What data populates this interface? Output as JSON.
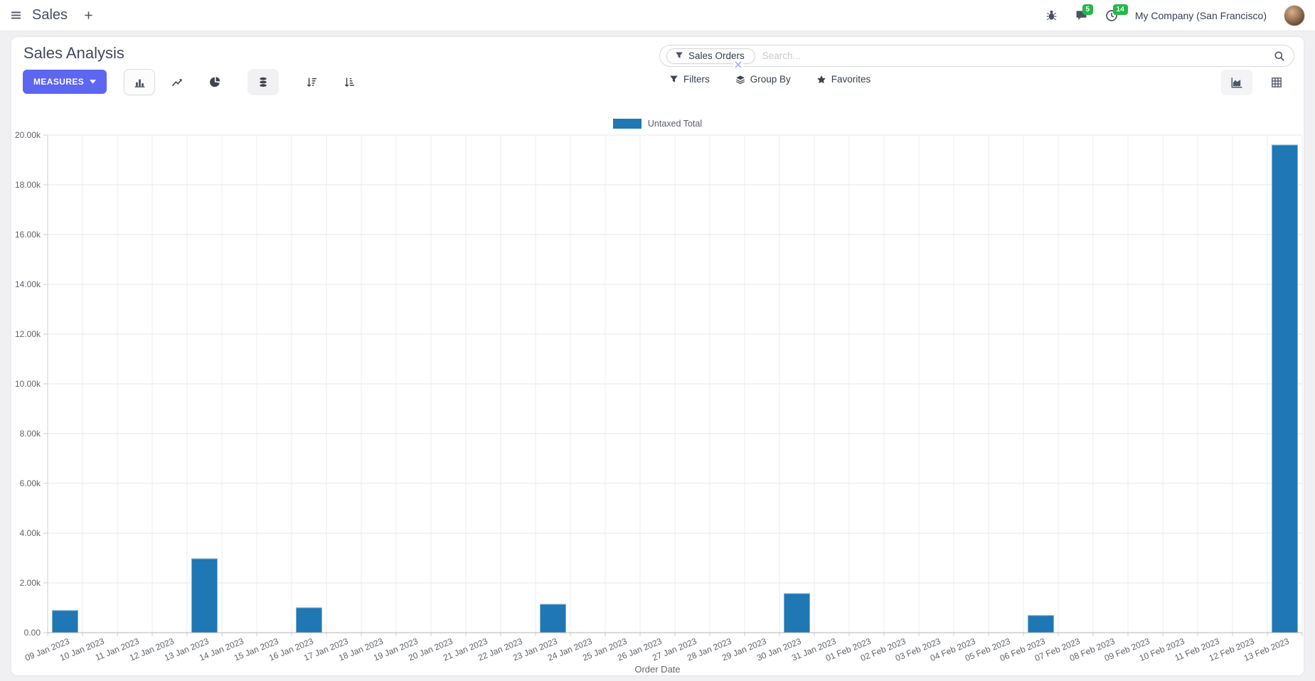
{
  "navbar": {
    "app_name": "Sales",
    "messages_badge": "5",
    "activities_badge": "14",
    "company": "My Company (San Francisco)"
  },
  "control_panel": {
    "title": "Sales Analysis",
    "measures_label": "MEASURES",
    "search": {
      "facet": "Sales Orders",
      "placeholder": "Search..."
    },
    "menus": {
      "filters": "Filters",
      "group_by": "Group By",
      "favorites": "Favorites"
    }
  },
  "colors": {
    "accent": "#5c66f0",
    "bar": "#1f77b4",
    "bar_border": "#7fb2d6",
    "badge_green": "#1eba45"
  },
  "chart_data": {
    "type": "bar",
    "title": "",
    "legend_position": "top",
    "grid": true,
    "xlabel": "Order Date",
    "ylabel": "",
    "ylim": [
      0,
      20000
    ],
    "yticks": {
      "step": 2000,
      "labels": [
        "0.00",
        "2.00k",
        "4.00k",
        "6.00k",
        "8.00k",
        "10.00k",
        "12.00k",
        "14.00k",
        "16.00k",
        "18.00k",
        "20.00k"
      ]
    },
    "categories": [
      "09 Jan 2023",
      "10 Jan 2023",
      "11 Jan 2023",
      "12 Jan 2023",
      "13 Jan 2023",
      "14 Jan 2023",
      "15 Jan 2023",
      "16 Jan 2023",
      "17 Jan 2023",
      "18 Jan 2023",
      "19 Jan 2023",
      "20 Jan 2023",
      "21 Jan 2023",
      "22 Jan 2023",
      "23 Jan 2023",
      "24 Jan 2023",
      "25 Jan 2023",
      "26 Jan 2023",
      "27 Jan 2023",
      "28 Jan 2023",
      "29 Jan 2023",
      "30 Jan 2023",
      "31 Jan 2023",
      "01 Feb 2023",
      "02 Feb 2023",
      "03 Feb 2023",
      "04 Feb 2023",
      "05 Feb 2023",
      "06 Feb 2023",
      "07 Feb 2023",
      "08 Feb 2023",
      "09 Feb 2023",
      "10 Feb 2023",
      "11 Feb 2023",
      "12 Feb 2023",
      "13 Feb 2023"
    ],
    "series": [
      {
        "name": "Untaxed Total",
        "color": "#1f77b4",
        "values": [
          890,
          0,
          0,
          0,
          2970,
          0,
          0,
          1000,
          0,
          0,
          0,
          0,
          0,
          0,
          1140,
          0,
          0,
          0,
          0,
          0,
          0,
          1570,
          0,
          0,
          0,
          0,
          0,
          0,
          690,
          0,
          0,
          0,
          0,
          0,
          0,
          19600
        ]
      }
    ]
  }
}
